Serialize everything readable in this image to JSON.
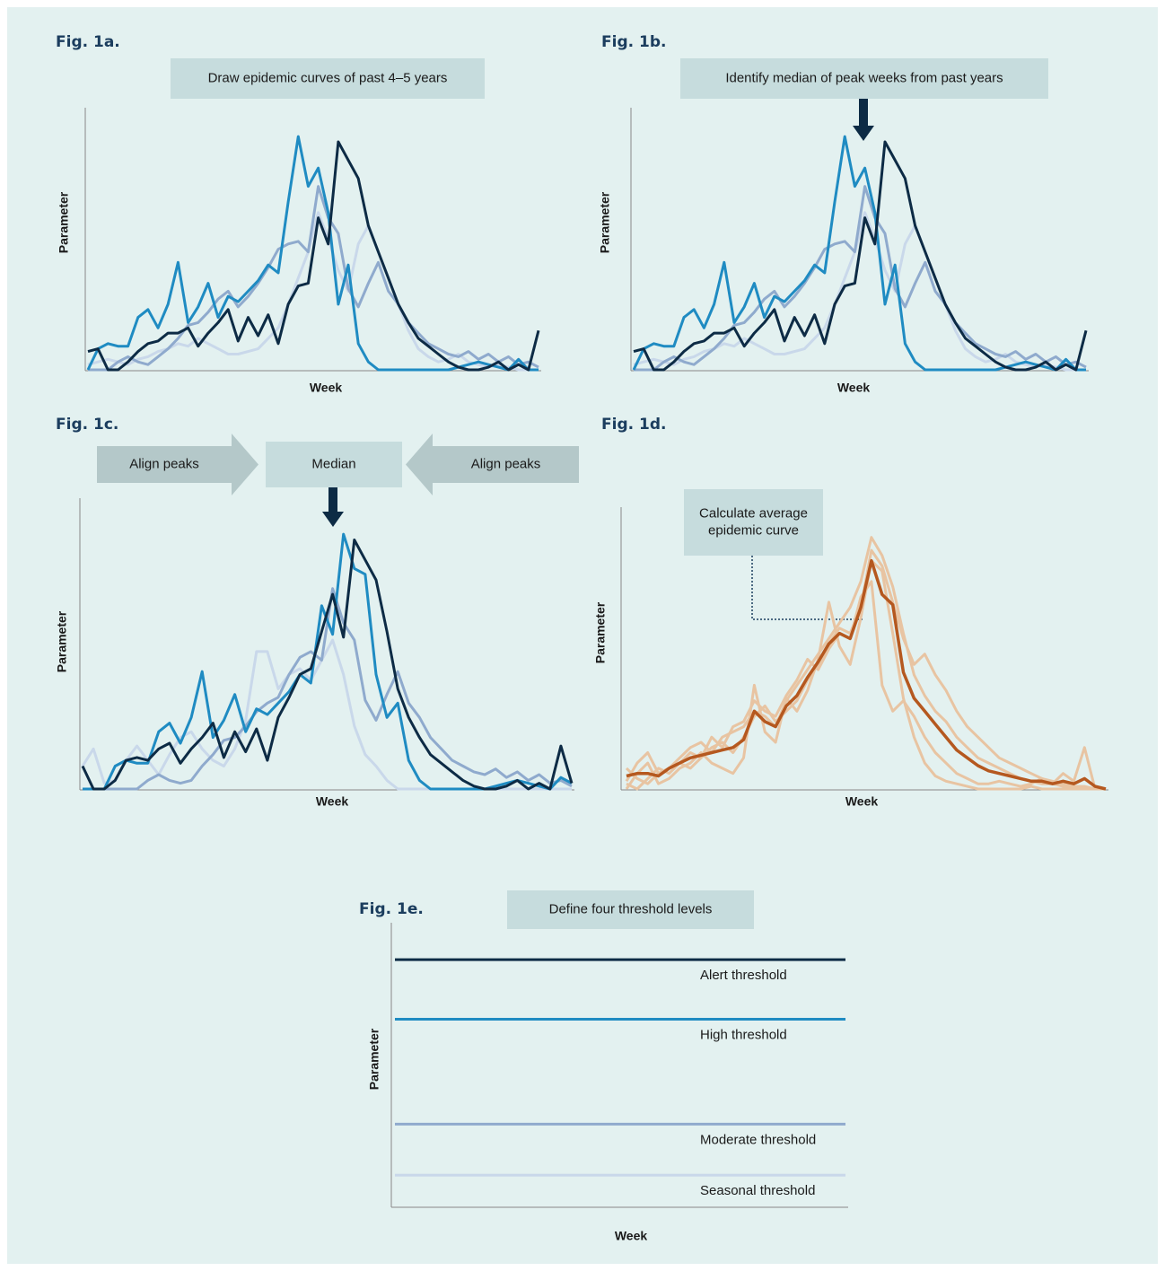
{
  "chart_data": [
    {
      "type": "line",
      "label": "Fig. 1a.",
      "annotation": "Draw epidemic curves of past 4–5 years",
      "xlabel": "Week",
      "ylabel": "Parameter",
      "ylim": [
        0,
        100
      ],
      "series": [
        {
          "color": "#c9d8ea",
          "values": [
            2,
            3,
            4,
            3,
            2,
            4,
            5,
            7,
            8,
            10,
            9,
            12,
            10,
            8,
            6,
            6,
            7,
            8,
            12,
            16,
            25,
            35,
            45,
            60,
            50,
            38,
            30,
            48,
            55,
            45,
            35,
            25,
            15,
            8,
            5,
            3,
            4,
            6,
            3,
            2,
            1,
            2,
            1,
            0,
            0,
            0
          ]
        },
        {
          "color": "#8faacd",
          "values": [
            0,
            0,
            0,
            3,
            5,
            3,
            2,
            5,
            8,
            12,
            17,
            18,
            22,
            27,
            30,
            24,
            28,
            33,
            39,
            46,
            48,
            49,
            45,
            70,
            58,
            52,
            31,
            24,
            33,
            41,
            30,
            25,
            18,
            14,
            10,
            8,
            6,
            5,
            7,
            4,
            6,
            3,
            5,
            2,
            3,
            1
          ]
        },
        {
          "color": "#1f8bc2",
          "values": [
            0,
            8,
            10,
            9,
            9,
            20,
            23,
            16,
            25,
            41,
            18,
            24,
            33,
            20,
            28,
            26,
            30,
            34,
            40,
            37,
            64,
            89,
            70,
            77,
            60,
            25,
            40,
            10,
            3,
            0,
            0,
            0,
            0,
            0,
            0,
            0,
            0,
            1,
            2,
            3,
            2,
            1,
            0,
            4,
            0,
            0
          ]
        },
        {
          "color": "#0d2b45",
          "values": [
            7,
            8,
            0,
            0,
            3,
            7,
            10,
            11,
            14,
            14,
            16,
            9,
            14,
            18,
            23,
            11,
            20,
            13,
            21,
            10,
            25,
            32,
            33,
            58,
            48,
            87,
            80,
            73,
            55,
            45,
            35,
            25,
            18,
            12,
            9,
            6,
            3,
            1,
            0,
            0,
            1,
            3,
            0,
            2,
            0,
            15
          ]
        }
      ]
    },
    {
      "type": "line",
      "label": "Fig. 1b.",
      "annotation": "Identify median of peak weeks from past years",
      "xlabel": "Week",
      "ylabel": "Parameter",
      "ylim": [
        0,
        100
      ],
      "series": [
        {
          "color": "#c9d8ea",
          "values": [
            2,
            3,
            4,
            3,
            2,
            4,
            5,
            7,
            8,
            10,
            9,
            12,
            10,
            8,
            6,
            6,
            7,
            8,
            12,
            16,
            25,
            35,
            45,
            60,
            50,
            38,
            30,
            48,
            55,
            45,
            35,
            25,
            15,
            8,
            5,
            3,
            4,
            6,
            3,
            2,
            1,
            2,
            1,
            0,
            0,
            0
          ]
        },
        {
          "color": "#8faacd",
          "values": [
            0,
            0,
            0,
            3,
            5,
            3,
            2,
            5,
            8,
            12,
            17,
            18,
            22,
            27,
            30,
            24,
            28,
            33,
            39,
            46,
            48,
            49,
            45,
            70,
            58,
            52,
            31,
            24,
            33,
            41,
            30,
            25,
            18,
            14,
            10,
            8,
            6,
            5,
            7,
            4,
            6,
            3,
            5,
            2,
            3,
            1
          ]
        },
        {
          "color": "#1f8bc2",
          "values": [
            0,
            8,
            10,
            9,
            9,
            20,
            23,
            16,
            25,
            41,
            18,
            24,
            33,
            20,
            28,
            26,
            30,
            34,
            40,
            37,
            64,
            89,
            70,
            77,
            60,
            25,
            40,
            10,
            3,
            0,
            0,
            0,
            0,
            0,
            0,
            0,
            0,
            1,
            2,
            3,
            2,
            1,
            0,
            4,
            0,
            0
          ]
        },
        {
          "color": "#0d2b45",
          "values": [
            7,
            8,
            0,
            0,
            3,
            7,
            10,
            11,
            14,
            14,
            16,
            9,
            14,
            18,
            23,
            11,
            20,
            13,
            21,
            10,
            25,
            32,
            33,
            58,
            48,
            87,
            80,
            73,
            55,
            45,
            35,
            25,
            18,
            12,
            9,
            6,
            3,
            1,
            0,
            0,
            1,
            3,
            0,
            2,
            0,
            15
          ]
        }
      ]
    },
    {
      "type": "line",
      "label": "Fig. 1c.",
      "annotation": [
        "Align peaks",
        "Median",
        "Align peaks"
      ],
      "xlabel": "Week",
      "ylabel": "Parameter",
      "ylim": [
        0,
        100
      ],
      "series": [
        {
          "color": "#c9d8ea",
          "values": [
            8,
            14,
            2,
            3,
            10,
            15,
            10,
            5,
            12,
            18,
            20,
            14,
            10,
            8,
            14,
            24,
            48,
            48,
            35,
            40,
            42,
            38,
            45,
            52,
            40,
            22,
            12,
            8,
            3,
            0,
            0,
            0,
            0,
            0,
            0,
            0,
            0,
            0,
            0,
            0,
            0,
            0,
            0,
            0,
            0,
            0
          ]
        },
        {
          "color": "#8faacd",
          "values": [
            0,
            0,
            0,
            0,
            0,
            0,
            3,
            5,
            3,
            2,
            3,
            8,
            12,
            17,
            18,
            22,
            27,
            30,
            32,
            40,
            46,
            48,
            45,
            70,
            58,
            52,
            31,
            24,
            33,
            41,
            30,
            25,
            18,
            14,
            10,
            8,
            6,
            5,
            7,
            4,
            6,
            3,
            5,
            2,
            3,
            1
          ]
        },
        {
          "color": "#1f8bc2",
          "values": [
            0,
            0,
            0,
            8,
            10,
            9,
            9,
            20,
            23,
            16,
            25,
            41,
            18,
            24,
            33,
            20,
            28,
            26,
            30,
            34,
            40,
            37,
            64,
            54,
            89,
            77,
            75,
            40,
            25,
            30,
            10,
            3,
            0,
            0,
            0,
            0,
            0,
            0,
            1,
            2,
            3,
            2,
            1,
            0,
            4,
            2
          ]
        },
        {
          "color": "#0d2b45",
          "values": [
            8,
            0,
            0,
            3,
            10,
            11,
            10,
            14,
            16,
            9,
            14,
            18,
            23,
            11,
            20,
            13,
            21,
            10,
            25,
            32,
            40,
            42,
            55,
            68,
            53,
            87,
            80,
            73,
            55,
            35,
            25,
            18,
            12,
            9,
            6,
            3,
            1,
            0,
            0,
            1,
            3,
            0,
            2,
            0,
            15,
            2
          ]
        }
      ]
    },
    {
      "type": "line",
      "label": "Fig. 1d.",
      "annotation": [
        "Calculate average",
        "epidemic curve"
      ],
      "xlabel": "Week",
      "ylabel": "Parameter",
      "ylim": [
        0,
        100
      ],
      "series": [
        {
          "color": "#e8c4a2",
          "values": [
            3,
            10,
            14,
            6,
            8,
            12,
            16,
            18,
            14,
            20,
            22,
            24,
            30,
            28,
            24,
            34,
            40,
            46,
            52,
            58,
            64,
            70,
            80,
            97,
            90,
            78,
            60,
            44,
            36,
            30,
            26,
            20,
            16,
            12,
            10,
            8,
            6,
            4,
            3,
            2,
            2,
            1,
            1,
            0,
            0,
            0
          ]
        },
        {
          "color": "#e8c4a2",
          "values": [
            0,
            6,
            10,
            2,
            4,
            8,
            10,
            14,
            10,
            8,
            6,
            12,
            40,
            22,
            18,
            35,
            30,
            38,
            50,
            72,
            55,
            48,
            66,
            88,
            84,
            60,
            35,
            20,
            10,
            5,
            3,
            2,
            1,
            0,
            0,
            0,
            0,
            0,
            1,
            0,
            0,
            0,
            0,
            0,
            0,
            0
          ]
        },
        {
          "color": "#e8c4a2",
          "values": [
            8,
            4,
            2,
            6,
            8,
            10,
            8,
            12,
            16,
            18,
            14,
            20,
            28,
            32,
            26,
            30,
            34,
            42,
            48,
            56,
            62,
            60,
            70,
            92,
            86,
            72,
            58,
            48,
            52,
            44,
            38,
            30,
            24,
            20,
            16,
            12,
            10,
            8,
            6,
            4,
            3,
            2,
            1,
            1,
            0,
            0
          ]
        },
        {
          "color": "#e8c4a2",
          "values": [
            2,
            0,
            4,
            8,
            6,
            10,
            14,
            12,
            20,
            16,
            24,
            26,
            34,
            30,
            28,
            36,
            42,
            50,
            46,
            54,
            60,
            58,
            74,
            80,
            40,
            30,
            34,
            28,
            20,
            14,
            10,
            6,
            4,
            2,
            2,
            3,
            2,
            1,
            2,
            4,
            2,
            6,
            3,
            16,
            0,
            0
          ]
        },
        {
          "color": "#b5581f",
          "values": [
            5,
            6,
            6,
            5,
            8,
            10,
            12,
            13,
            14,
            15,
            16,
            19,
            30,
            26,
            24,
            32,
            36,
            43,
            49,
            56,
            60,
            58,
            70,
            88,
            75,
            71,
            45,
            35,
            30,
            25,
            20,
            15,
            12,
            9,
            7,
            6,
            5,
            4,
            3,
            3,
            2,
            3,
            2,
            4,
            1,
            0
          ]
        }
      ]
    },
    {
      "type": "threshold",
      "label": "Fig. 1e.",
      "annotation": "Define four threshold levels",
      "xlabel": "Week",
      "ylabel": "Parameter",
      "ylim": [
        0,
        100
      ],
      "series": [
        {
          "name": "Alert threshold",
          "color": "#0d2b45",
          "value": 87
        },
        {
          "name": "High threshold",
          "color": "#1f8bc2",
          "value": 66
        },
        {
          "name": "Moderate threshold",
          "color": "#8faacd",
          "value": 29
        },
        {
          "name": "Seasonal threshold",
          "color": "#c9d8ea",
          "value": 11
        }
      ]
    }
  ]
}
